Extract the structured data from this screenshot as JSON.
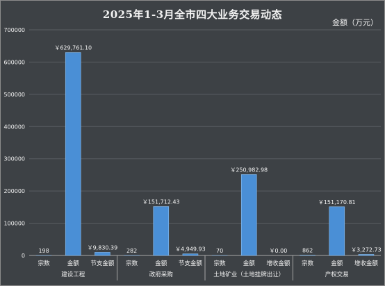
{
  "chart_data": {
    "type": "bar",
    "title": "2025年1-3月全市四大业务交易动态",
    "unit_label": "金额（万元）",
    "ylim": [
      0,
      700000
    ],
    "yticks": [
      "0",
      "100000",
      "200000",
      "300000",
      "400000",
      "500000",
      "600000",
      "700000"
    ],
    "ytick_values": [
      0,
      100000,
      200000,
      300000,
      400000,
      500000,
      600000,
      700000
    ],
    "grid": true,
    "colors": {
      "bar": "#4a8fd6",
      "bar_edge": "#8ec0f0",
      "background": "#3d4145",
      "text": "#f2f2f2"
    },
    "groups": [
      {
        "name": "建设工程",
        "items": [
          {
            "category": "宗数",
            "value": 198,
            "label": "198"
          },
          {
            "category": "金额",
            "value": 629761.1,
            "label": "￥629,761.10"
          },
          {
            "category": "节支金额",
            "value": 9830.39,
            "label": "￥9,830.39"
          }
        ]
      },
      {
        "name": "政府采购",
        "items": [
          {
            "category": "宗数",
            "value": 282,
            "label": "282"
          },
          {
            "category": "金额",
            "value": 151712.43,
            "label": "￥151,712.43"
          },
          {
            "category": "节支金额",
            "value": 4949.93,
            "label": "￥4,949.93"
          }
        ]
      },
      {
        "name": "土地矿业（土地挂牌出让）",
        "items": [
          {
            "category": "宗数",
            "value": 70,
            "label": "70"
          },
          {
            "category": "金额",
            "value": 250982.98,
            "label": "￥250,982.98"
          },
          {
            "category": "增收金额",
            "value": 0.0,
            "label": "￥0.00"
          }
        ]
      },
      {
        "name": "产权交易",
        "items": [
          {
            "category": "宗数",
            "value": 862,
            "label": "862"
          },
          {
            "category": "金额",
            "value": 151170.81,
            "label": "￥151,170.81"
          },
          {
            "category": "增收金额",
            "value": 3272.73,
            "label": "￥3,272.73"
          }
        ]
      }
    ]
  }
}
